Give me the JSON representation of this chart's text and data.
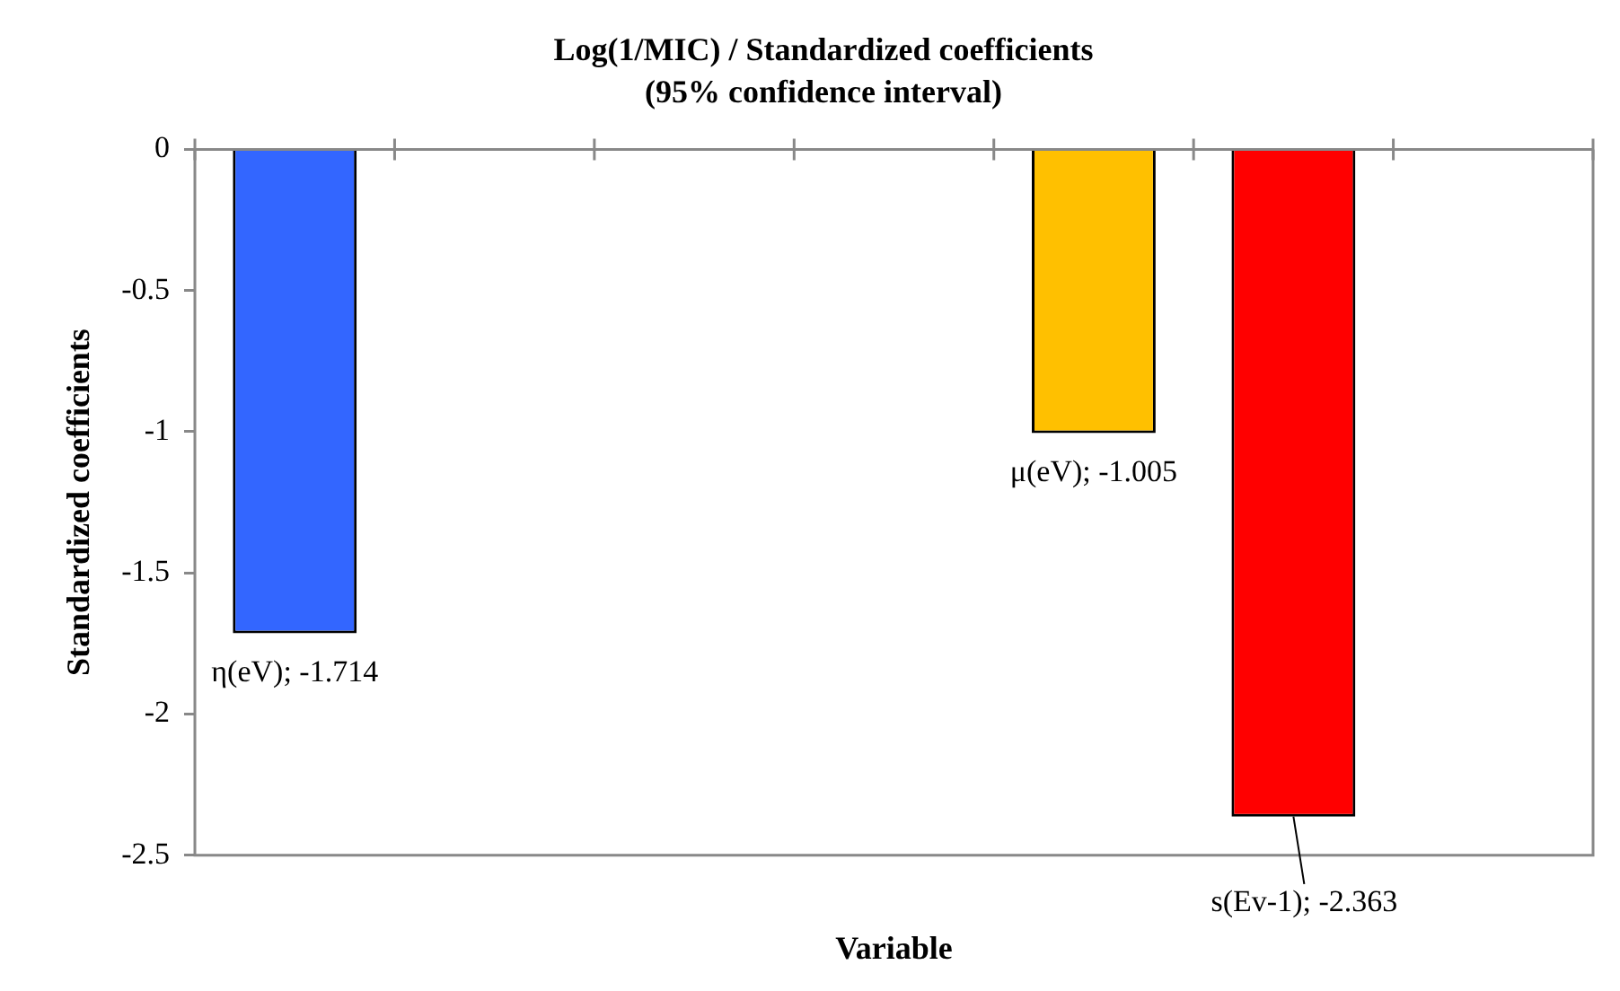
{
  "chart_data": {
    "type": "bar",
    "title": "Log(1/MIC) / Standardized coefficients",
    "subtitle": "(95% confidence interval)",
    "xlabel": "Variable",
    "ylabel": "Standardized coefficients",
    "categories": [
      null,
      null,
      null,
      null,
      null,
      null,
      null
    ],
    "values": [
      -1.714,
      null,
      null,
      null,
      -1.005,
      -2.363,
      null
    ],
    "colors": [
      "#3366ff",
      "#3366ff",
      "#3366ff",
      "#3366ff",
      "#ffc000",
      "#ff0000",
      "#ff0000"
    ],
    "value_labels": [
      "η(eV); -1.714",
      null,
      null,
      null,
      "μ(eV); -1.005",
      "s(Ev-1); -2.363",
      null
    ],
    "ylim": [
      -2.5,
      0
    ],
    "yticks": [
      -2.5,
      -2,
      -1.5,
      -1,
      -0.5,
      0
    ],
    "grid": false,
    "legend": false
  }
}
